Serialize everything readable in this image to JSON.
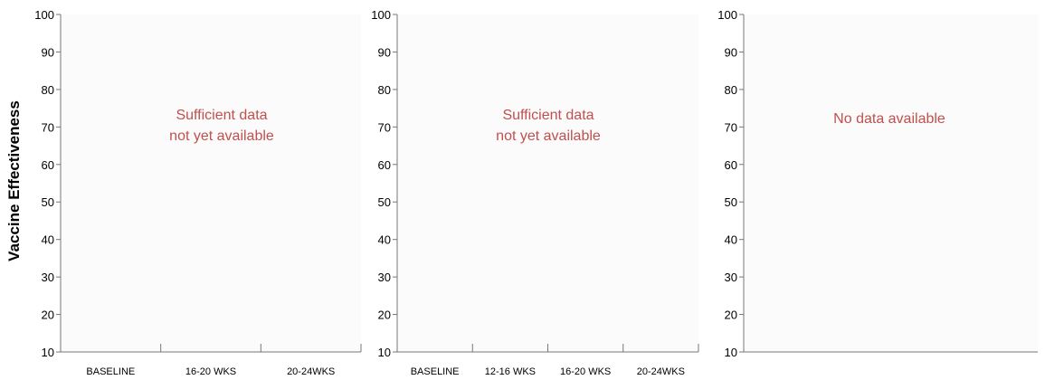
{
  "y_axis_label": "Vaccine Effectiveness",
  "colors": {
    "panel_background": "#fbfbfb",
    "axis": "#777777",
    "note_text": "#c0504d"
  },
  "chart_data": [
    {
      "type": "bar",
      "categories": [
        "BASELINE",
        "16-20 WKS",
        "20-24WKS"
      ],
      "series": [],
      "ylim": [
        10,
        100
      ],
      "yticks": [
        10,
        20,
        30,
        40,
        50,
        60,
        70,
        80,
        90,
        100
      ],
      "note": [
        "Sufficient data",
        "not yet available"
      ],
      "grid": false
    },
    {
      "type": "bar",
      "categories": [
        "BASELINE",
        "12-16 WKS",
        "16-20 WKS",
        "20-24WKS"
      ],
      "series": [],
      "ylim": [
        10,
        100
      ],
      "yticks": [
        10,
        20,
        30,
        40,
        50,
        60,
        70,
        80,
        90,
        100
      ],
      "note": [
        "Sufficient data",
        "not yet available"
      ],
      "grid": false
    },
    {
      "type": "bar",
      "categories": [],
      "series": [],
      "ylim": [
        10,
        100
      ],
      "yticks": [
        10,
        20,
        30,
        40,
        50,
        60,
        70,
        80,
        90,
        100
      ],
      "note": [
        "No data available"
      ],
      "grid": false
    }
  ]
}
